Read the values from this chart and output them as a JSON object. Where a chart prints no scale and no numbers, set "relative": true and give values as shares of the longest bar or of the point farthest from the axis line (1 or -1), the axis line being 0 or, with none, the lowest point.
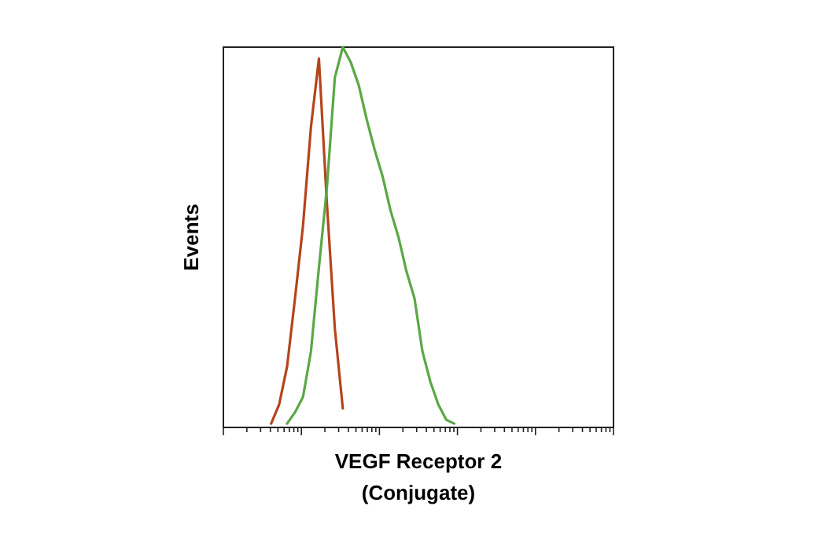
{
  "chart_data": {
    "type": "line",
    "relative": true,
    "ylabel": "Events",
    "xlabel": "VEGF Receptor 2\n(Conjugate)",
    "categories": [
      null,
      null,
      null,
      null,
      null,
      null,
      null,
      null,
      null,
      null,
      null,
      null,
      null,
      null,
      null,
      null,
      null,
      null,
      null,
      null,
      null,
      null,
      null,
      null,
      null,
      null,
      null,
      null,
      null,
      null,
      null,
      null,
      null,
      null,
      null,
      null,
      null,
      null,
      null,
      null,
      null,
      null,
      null,
      null,
      null,
      null,
      null,
      null,
      null,
      null
    ],
    "series": [
      {
        "color": "#b5441c",
        "values": [
          null,
          null,
          null,
          null,
          null,
          null,
          0.01,
          0.06,
          0.16,
          0.34,
          0.53,
          0.79,
          0.97,
          0.59,
          0.26,
          0.05,
          null,
          null,
          null,
          null,
          null,
          null,
          null,
          null,
          null,
          null,
          null,
          null,
          null,
          null,
          null,
          null,
          null,
          null,
          null,
          null,
          null,
          null,
          null,
          null,
          null,
          null,
          null,
          null,
          null,
          null,
          null,
          null,
          null,
          null
        ]
      },
      {
        "color": "#5aa845",
        "values": [
          null,
          null,
          null,
          null,
          null,
          null,
          null,
          null,
          0.01,
          0.04,
          0.08,
          0.2,
          0.42,
          0.63,
          0.92,
          1,
          0.96,
          0.9,
          0.81,
          0.73,
          0.66,
          0.57,
          0.5,
          0.41,
          0.34,
          0.2,
          0.12,
          0.06,
          0.02,
          0.01,
          null,
          null,
          null,
          null,
          null,
          null,
          null,
          null,
          null,
          null,
          null,
          null,
          null,
          null,
          null,
          null,
          null,
          null,
          null,
          null
        ]
      }
    ]
  }
}
